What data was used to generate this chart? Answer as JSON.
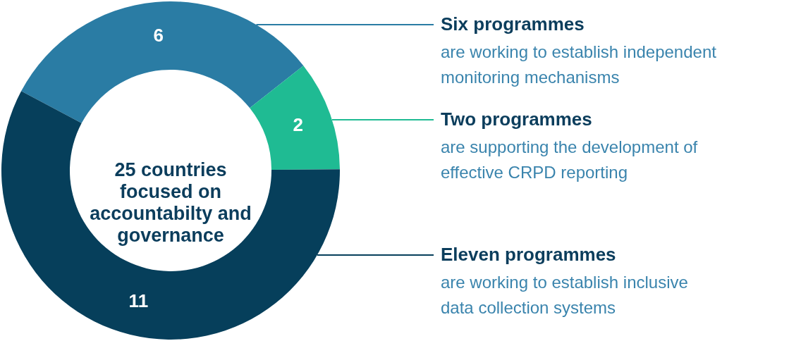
{
  "chart_data": {
    "type": "donut",
    "title": "25 countries focused on accountabilty and governance",
    "categories": [
      "Six programmes",
      "Two programmes",
      "Eleven programmes"
    ],
    "values": [
      6,
      2,
      11
    ],
    "colors": [
      "#2a7ca4",
      "#1fbb93",
      "#063f5b"
    ],
    "data_labels": true,
    "annotations": [
      "are working to establish independent monitoring mechanisms",
      "are supporting the development of effective CRPD reporting",
      "are working to establish inclusive data collection systems"
    ]
  }
}
